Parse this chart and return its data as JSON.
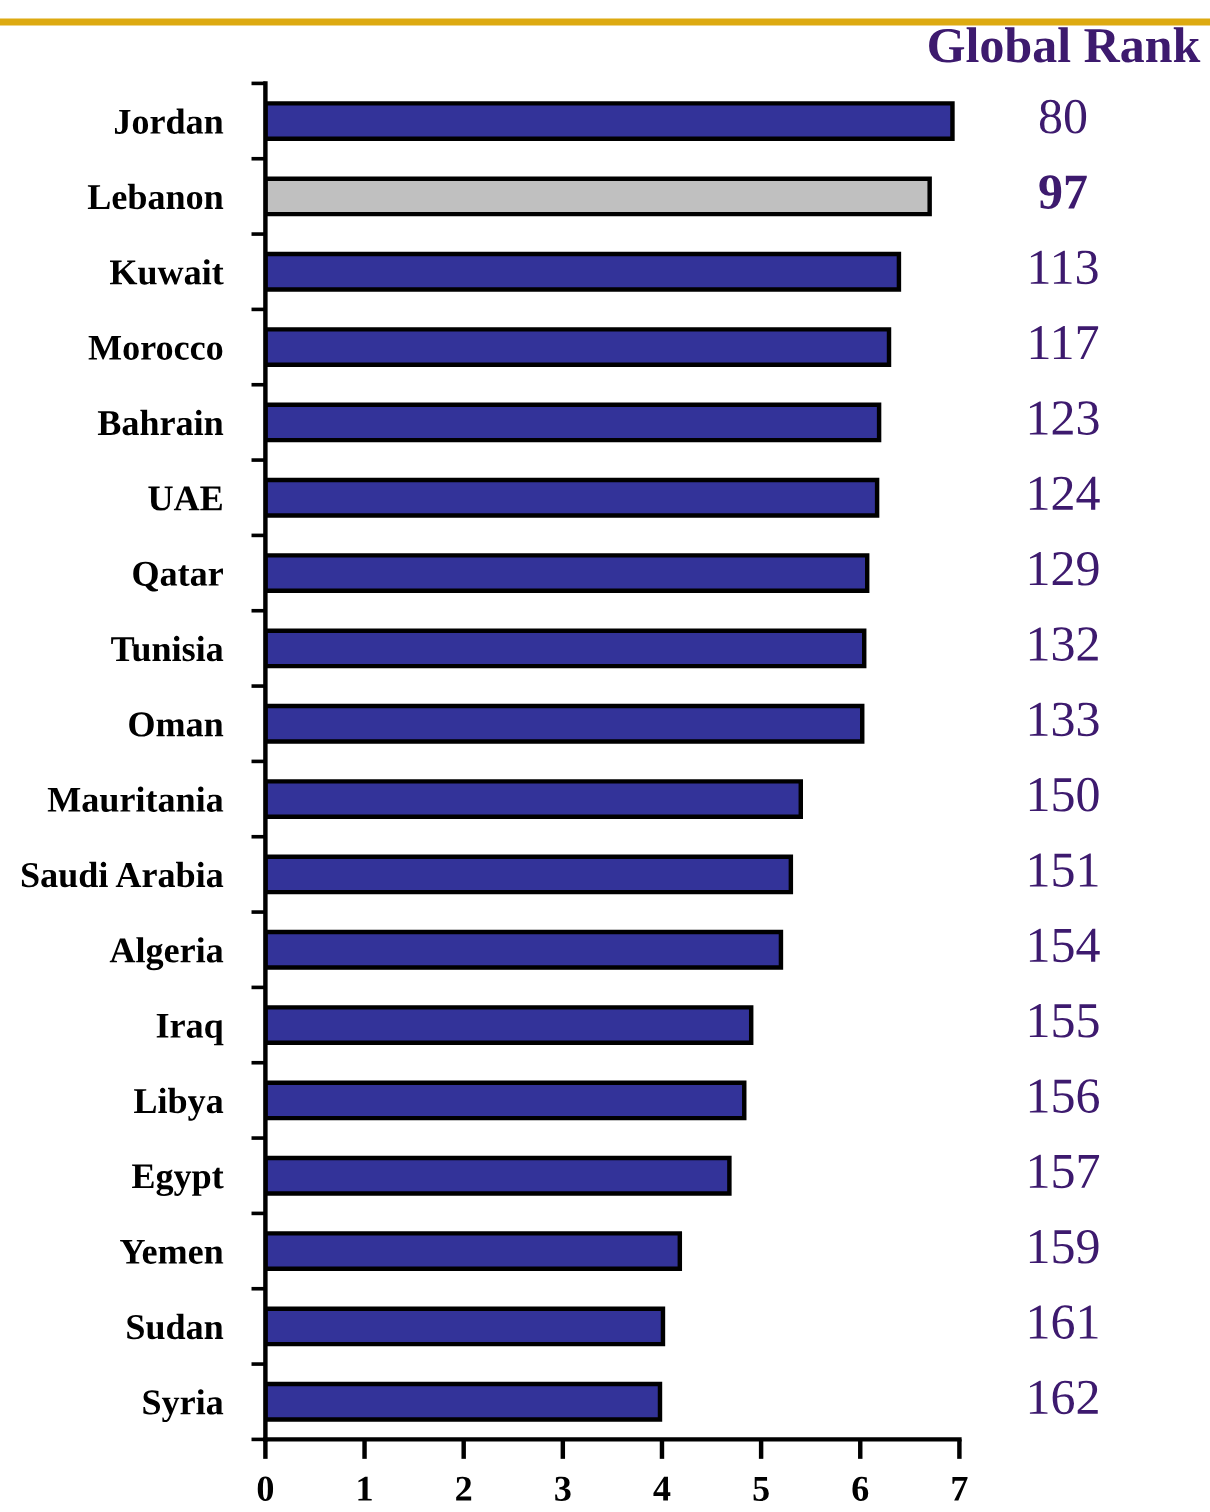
{
  "chart_data": {
    "type": "bar",
    "orientation": "horizontal",
    "categories": [
      "Jordan",
      "Lebanon",
      "Kuwait",
      "Morocco",
      "Bahrain",
      "UAE",
      "Qatar",
      "Tunisia",
      "Oman",
      "Mauritania",
      "Saudi Arabia",
      "Algeria",
      "Iraq",
      "Libya",
      "Egypt",
      "Yemen",
      "Sudan",
      "Syria"
    ],
    "values": [
      6.93,
      6.7,
      6.39,
      6.29,
      6.19,
      6.17,
      6.07,
      6.04,
      6.02,
      5.4,
      5.3,
      5.2,
      4.9,
      4.83,
      4.68,
      4.18,
      4.01,
      3.98
    ],
    "colors": [
      "#333399",
      "#c0c0c0",
      "#333399",
      "#333399",
      "#333399",
      "#333399",
      "#333399",
      "#333399",
      "#333399",
      "#333399",
      "#333399",
      "#333399",
      "#333399",
      "#333399",
      "#333399",
      "#333399",
      "#333399",
      "#333399"
    ],
    "xlim": [
      0,
      7
    ],
    "xticks": [
      0,
      1,
      2,
      3,
      4,
      5,
      6,
      7
    ],
    "annotations": [
      "Global Rank",
      "80",
      "97",
      "113",
      "117",
      "123",
      "124",
      "129",
      "132",
      "133",
      "150",
      "151",
      "154",
      "155",
      "156",
      "157",
      "159",
      "161",
      "162"
    ]
  }
}
